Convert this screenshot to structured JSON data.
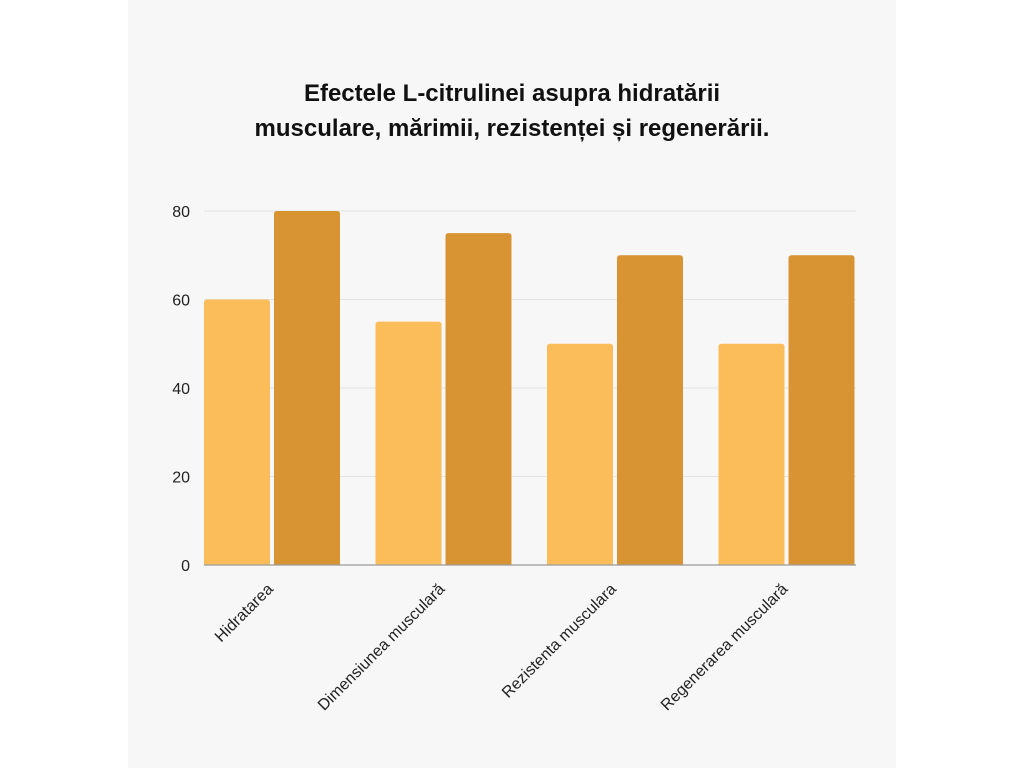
{
  "chart_data": {
    "type": "bar",
    "title_lines": [
      "Efectele L-citrulinei asupra hidratării",
      "musculare, mărimii, rezistenței și regenerării."
    ],
    "categories": [
      "Hidratarea",
      "Dimensiunea musculară",
      "Rezistenta musculara",
      "Regenerarea musculară"
    ],
    "series": [
      {
        "values": [
          60,
          55,
          50,
          50
        ],
        "color": "#fbbd5a"
      },
      {
        "values": [
          80,
          75,
          70,
          70
        ],
        "color": "#d89433"
      }
    ],
    "yticks": [
      0,
      20,
      40,
      60,
      80
    ],
    "ylim": [
      0,
      80
    ],
    "grid": true,
    "legend": "none",
    "xlabel": "",
    "ylabel": ""
  }
}
